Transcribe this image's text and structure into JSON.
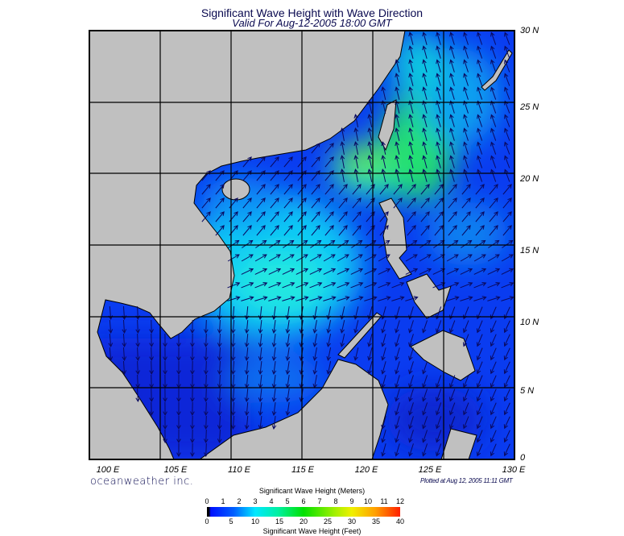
{
  "title": "Significant Wave Height with Wave Direction",
  "subtitle": "Valid For Aug-12-2005 18:00 GMT",
  "lat_labels": [
    "30 N",
    "25 N",
    "20 N",
    "15 N",
    "10 N",
    "5 N",
    "0"
  ],
  "lon_labels": [
    "100 E",
    "105 E",
    "110 E",
    "115 E",
    "120 E",
    "125 E",
    "130 E"
  ],
  "brand": "oceanweather inc.",
  "plotted": "Plotted at Aug 12, 2005 11:11 GMT",
  "colorbar": {
    "meters_label": "Significant Wave Height (Meters)",
    "feet_label": "Significant Wave Height (Feet)",
    "meters_ticks": [
      "0",
      "1",
      "2",
      "3",
      "4",
      "5",
      "6",
      "7",
      "8",
      "9",
      "10",
      "11",
      "12"
    ],
    "feet_ticks": [
      "0",
      "5",
      "10",
      "15",
      "20",
      "25",
      "30",
      "35",
      "40"
    ]
  },
  "colors": {
    "land": "#c0c0c0",
    "sea_low": "#0a3cf0",
    "sea_mid": "#10d8f5",
    "sea_high": "#20e070",
    "arrow": "#0a0a60"
  }
}
